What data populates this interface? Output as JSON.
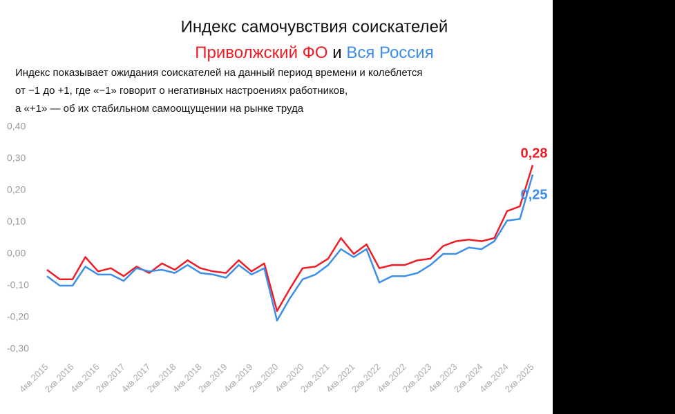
{
  "chart_data": {
    "type": "line",
    "title": "Индекс самочувствия соискателей",
    "legend_joiner": "и",
    "description": [
      "Индекс показывает ожидания соискателей на данный период времени и колеблется",
      "от −1 до +1, где «−1» говорит о негативных настроениях работников,",
      "а «+1» — об их стабильном самоощущении на рынке труда"
    ],
    "categories": [
      "4кв.2015",
      null,
      "2кв.2016",
      null,
      "4кв.2016",
      null,
      "2кв.2017",
      null,
      "4кв.2017",
      null,
      "2кв.2018",
      null,
      "4кв.2018",
      null,
      "2кв.2019",
      null,
      "4кв.2019",
      null,
      "2кв.2020",
      null,
      "4кв.2020",
      null,
      "2кв.2021",
      null,
      "4кв.2021",
      null,
      "2кв.2022",
      null,
      "4кв.2022",
      null,
      "2кв.2023",
      null,
      "4кв.2023",
      null,
      "2кв.2024",
      null,
      "4кв.2024",
      null,
      "2кв.2025"
    ],
    "series": [
      {
        "name": "Приволжский ФО",
        "color": "#ee1c25",
        "values": [
          -0.05,
          -0.08,
          -0.08,
          -0.01,
          -0.055,
          -0.045,
          -0.07,
          -0.04,
          -0.06,
          -0.03,
          -0.05,
          -0.02,
          -0.045,
          -0.055,
          -0.06,
          -0.02,
          -0.055,
          -0.03,
          -0.18,
          -0.11,
          -0.045,
          -0.04,
          -0.015,
          0.05,
          0.0,
          0.03,
          -0.045,
          -0.035,
          -0.035,
          -0.02,
          -0.015,
          0.025,
          0.04,
          0.045,
          0.04,
          0.05,
          0.135,
          0.15,
          0.28
        ],
        "value_labels": [
          null,
          null,
          null,
          null,
          null,
          null,
          null,
          null,
          null,
          null,
          null,
          null,
          null,
          null,
          null,
          null,
          null,
          null,
          null,
          null,
          null,
          null,
          null,
          null,
          null,
          null,
          null,
          null,
          null,
          null,
          null,
          null,
          null,
          null,
          null,
          null,
          null,
          null,
          "0,28"
        ]
      },
      {
        "name": "Вся Россия",
        "color": "#3c8ee8",
        "values": [
          -0.07,
          -0.1,
          -0.1,
          -0.04,
          -0.065,
          -0.065,
          -0.085,
          -0.045,
          -0.055,
          -0.05,
          -0.06,
          -0.035,
          -0.06,
          -0.065,
          -0.075,
          -0.035,
          -0.065,
          -0.045,
          -0.21,
          -0.14,
          -0.08,
          -0.065,
          -0.035,
          0.015,
          -0.01,
          0.015,
          -0.09,
          -0.07,
          -0.07,
          -0.06,
          -0.035,
          0.0,
          0.0,
          0.02,
          0.015,
          0.04,
          0.105,
          0.11,
          0.25
        ],
        "value_labels": [
          null,
          null,
          null,
          null,
          null,
          null,
          null,
          null,
          null,
          null,
          null,
          null,
          null,
          null,
          null,
          null,
          null,
          null,
          null,
          null,
          null,
          null,
          null,
          null,
          null,
          null,
          null,
          null,
          null,
          null,
          null,
          null,
          null,
          null,
          null,
          null,
          null,
          null,
          "0,25"
        ]
      }
    ],
    "ylim": [
      -0.3,
      0.4
    ],
    "yticks": [
      {
        "value": -0.3,
        "label": "-0,30"
      },
      {
        "value": -0.2,
        "label": "-0,20"
      },
      {
        "value": -0.1,
        "label": "-0,10"
      },
      {
        "value": 0,
        "label": "0,00"
      },
      {
        "value": 0.1,
        "label": "0,10"
      },
      {
        "value": 0.2,
        "label": "0,20"
      },
      {
        "value": 0.3,
        "label": "0,30"
      },
      {
        "value": 0.4,
        "label": "0,40"
      }
    ],
    "grid": false
  }
}
